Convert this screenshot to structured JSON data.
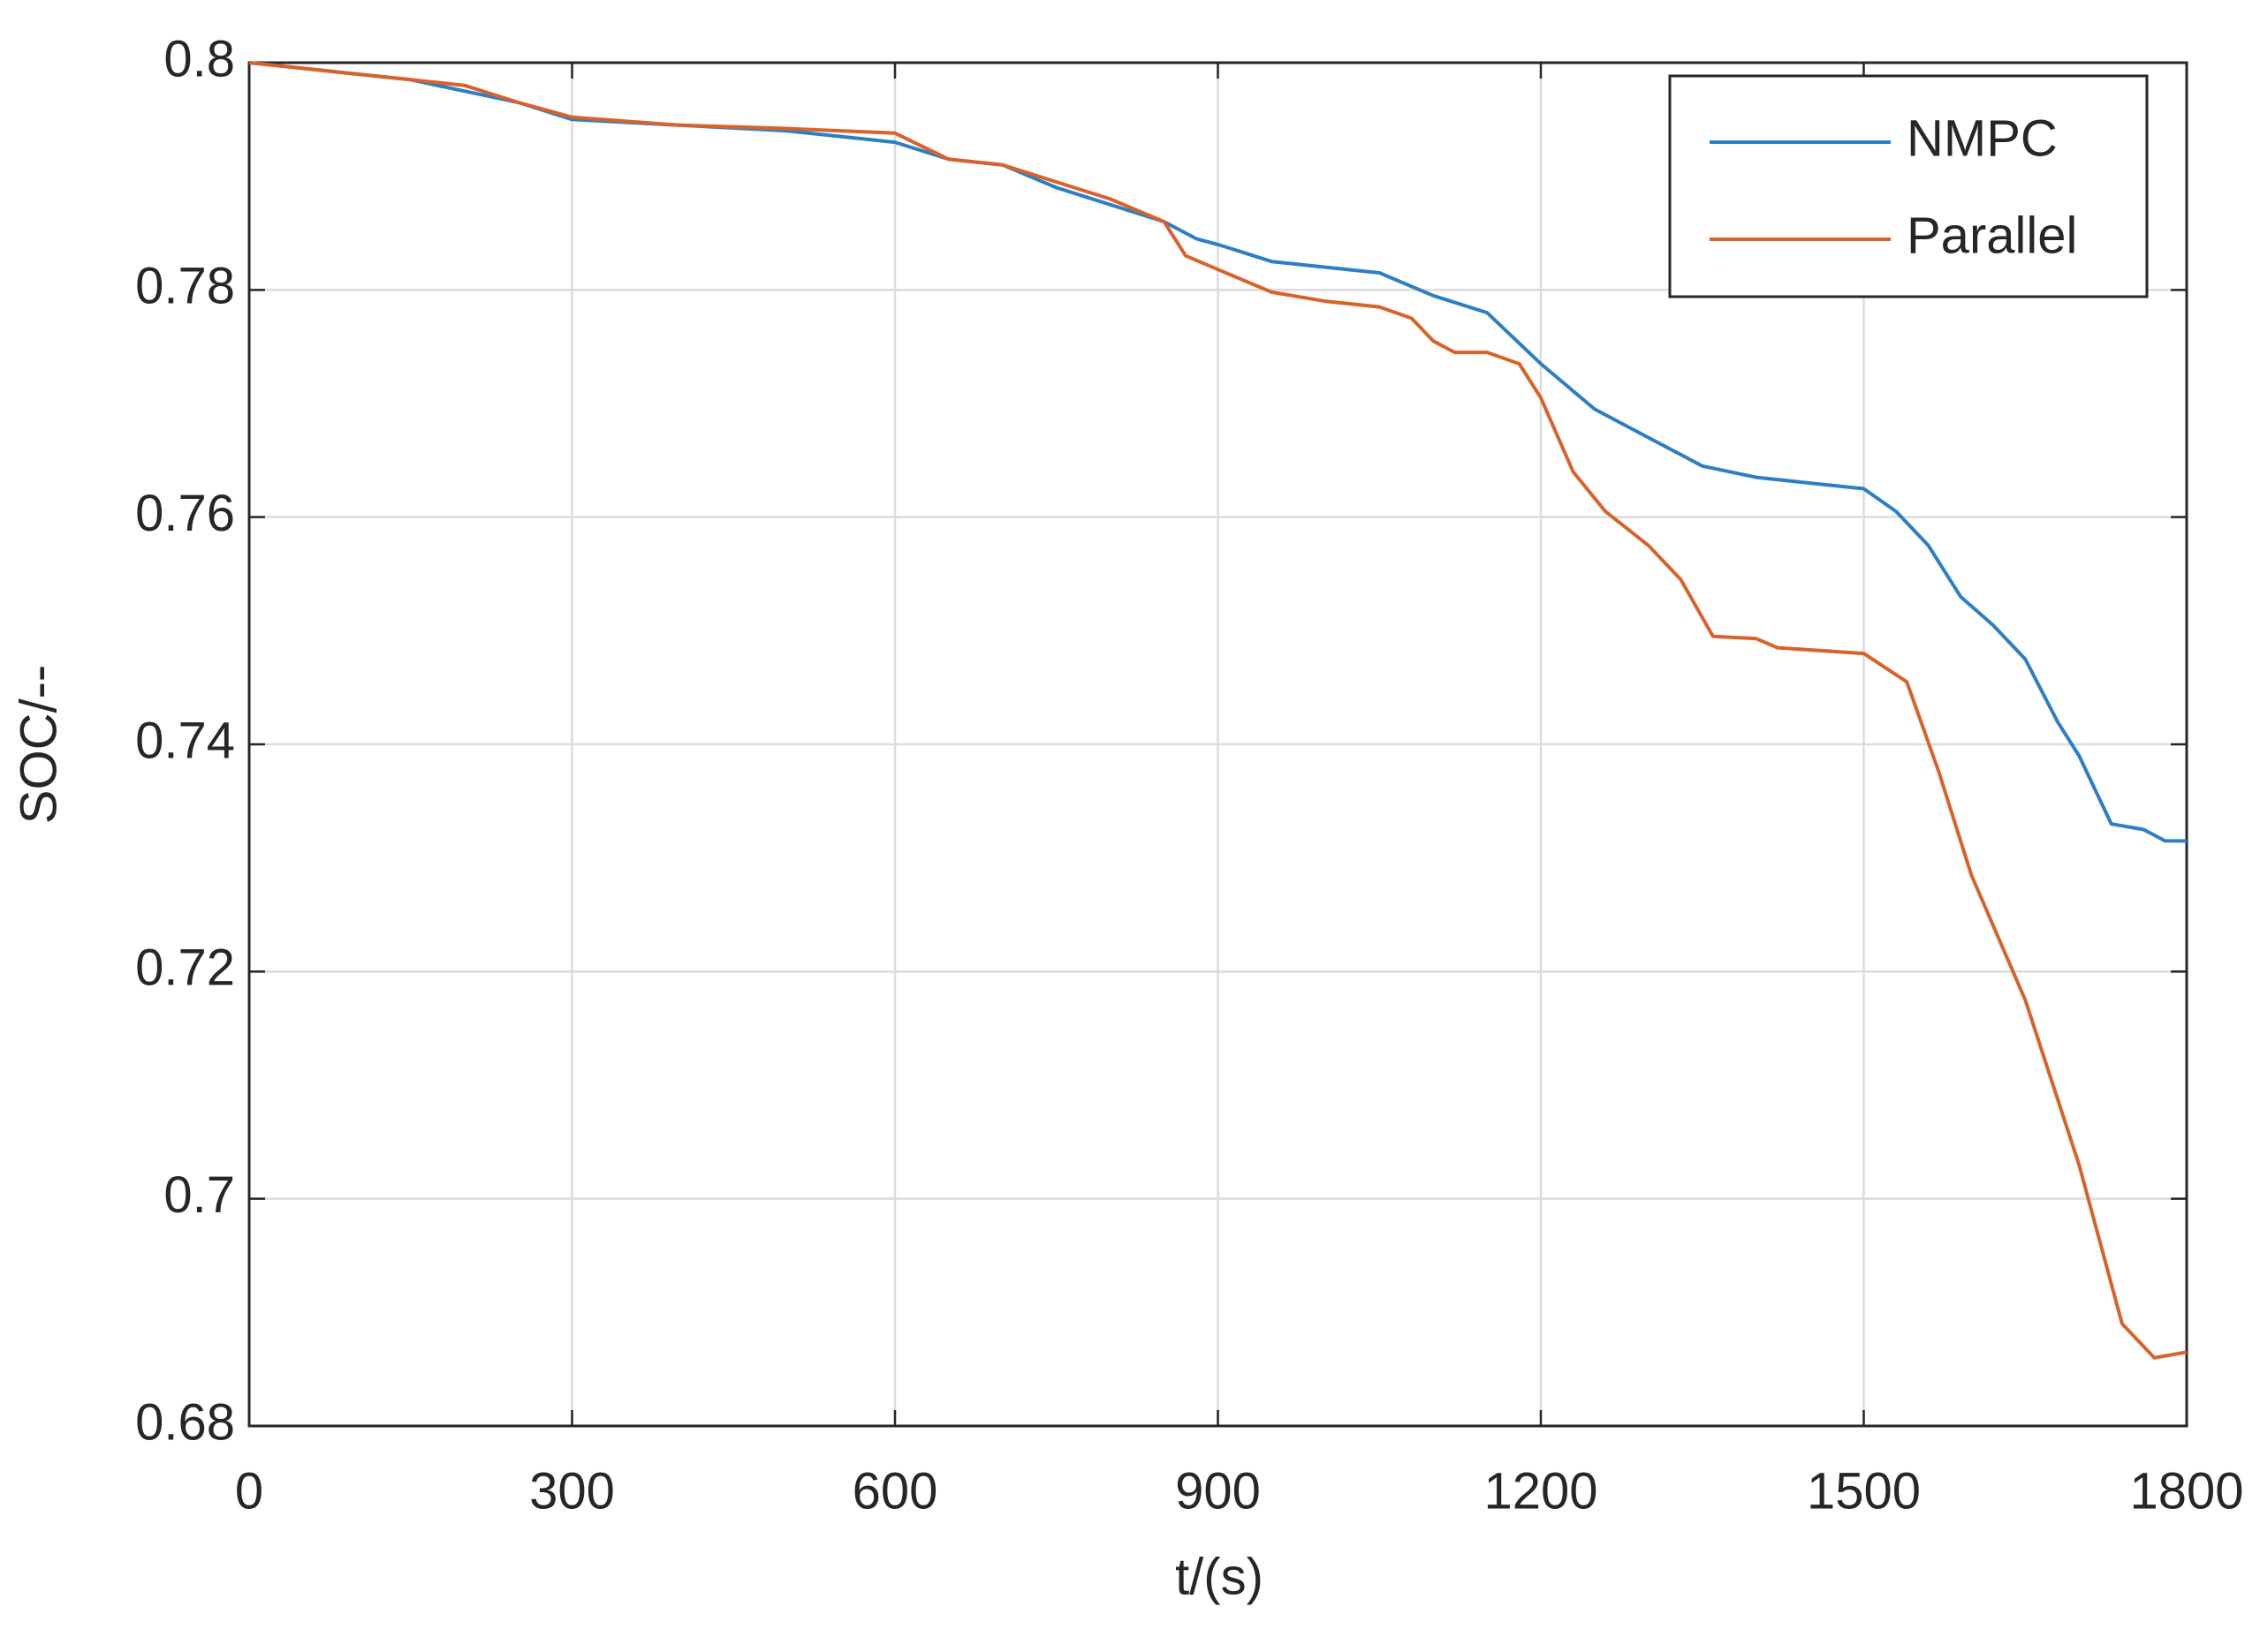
{
  "chart_data": {
    "type": "line",
    "xlabel": "t/(s)",
    "ylabel": "SOC/--",
    "xlim": [
      0,
      1800
    ],
    "xticks": [
      0,
      300,
      600,
      900,
      1200,
      1500,
      1800
    ],
    "ylim": [
      0.68,
      0.8
    ],
    "yticks": [
      0.68,
      0.7,
      0.72,
      0.74,
      0.76,
      0.78,
      0.8
    ],
    "grid": true,
    "legend": "northeast",
    "series": [
      {
        "name": "NMPC",
        "color": "#2c7fc4",
        "x": [
          0,
          50,
          100,
          150,
          200,
          250,
          300,
          400,
          500,
          600,
          650,
          700,
          750,
          800,
          850,
          880,
          900,
          950,
          1000,
          1050,
          1100,
          1150,
          1200,
          1250,
          1300,
          1350,
          1400,
          1450,
          1500,
          1530,
          1560,
          1590,
          1620,
          1650,
          1680,
          1700,
          1730,
          1760,
          1780,
          1800
        ],
        "values": [
          0.8,
          0.7995,
          0.799,
          0.7985,
          0.7975,
          0.7965,
          0.795,
          0.7945,
          0.794,
          0.793,
          0.7915,
          0.791,
          0.789,
          0.7875,
          0.786,
          0.7845,
          0.784,
          0.7825,
          0.782,
          0.7815,
          0.7795,
          0.778,
          0.7735,
          0.7695,
          0.767,
          0.7645,
          0.7635,
          0.763,
          0.7625,
          0.7605,
          0.7575,
          0.753,
          0.7505,
          0.7475,
          0.742,
          0.739,
          0.733,
          0.7325,
          0.7315,
          0.7315
        ]
      },
      {
        "name": "Parallel",
        "color": "#d9622b",
        "x": [
          0,
          50,
          100,
          150,
          200,
          250,
          300,
          400,
          500,
          600,
          650,
          700,
          750,
          800,
          850,
          870,
          900,
          950,
          1000,
          1050,
          1080,
          1100,
          1120,
          1150,
          1180,
          1200,
          1230,
          1260,
          1300,
          1330,
          1360,
          1400,
          1420,
          1500,
          1540,
          1570,
          1600,
          1650,
          1700,
          1740,
          1770,
          1800
        ],
        "values": [
          0.8,
          0.7995,
          0.799,
          0.7985,
          0.798,
          0.7965,
          0.7952,
          0.7945,
          0.7942,
          0.7938,
          0.7915,
          0.791,
          0.7895,
          0.788,
          0.786,
          0.783,
          0.7818,
          0.7798,
          0.779,
          0.7785,
          0.7775,
          0.7755,
          0.7745,
          0.7745,
          0.7735,
          0.7705,
          0.764,
          0.7605,
          0.7575,
          0.7545,
          0.7495,
          0.7493,
          0.7485,
          0.748,
          0.7455,
          0.7375,
          0.7285,
          0.7175,
          0.703,
          0.689,
          0.686,
          0.6865
        ]
      }
    ]
  }
}
